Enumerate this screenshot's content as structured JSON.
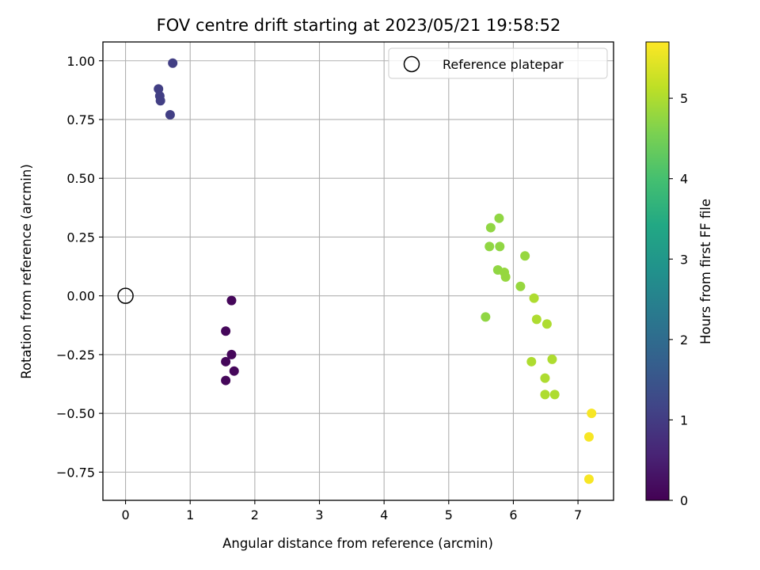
{
  "chart_data": {
    "type": "scatter",
    "title": "FOV centre drift starting at 2023/05/21 19:58:52",
    "xlabel": "Angular distance from reference (arcmin)",
    "ylabel": "Rotation from reference (arcmin)",
    "xlim": [
      -0.35,
      7.55
    ],
    "ylim": [
      -0.87,
      1.08
    ],
    "xticks": [
      "0",
      "1",
      "2",
      "3",
      "4",
      "5",
      "6",
      "7"
    ],
    "xtick_values": [
      0,
      1,
      2,
      3,
      4,
      5,
      6,
      7
    ],
    "yticks": [
      "1.00",
      "0.75",
      "0.50",
      "0.25",
      "0.00",
      "−0.25",
      "−0.50",
      "−0.75"
    ],
    "ytick_values": [
      1.0,
      0.75,
      0.5,
      0.25,
      0.0,
      -0.25,
      -0.5,
      -0.75
    ],
    "grid": true,
    "legend": {
      "label": "Reference platepar",
      "placement": "top-right"
    },
    "reference_point": {
      "x": 0.0,
      "y": 0.0
    },
    "colorbar": {
      "label": "Hours from first FF file",
      "colormap": "viridis",
      "range": [
        0,
        5.7
      ],
      "ticks": [
        "0",
        "1",
        "2",
        "3",
        "4",
        "5"
      ],
      "tick_values": [
        0,
        1,
        2,
        3,
        4,
        5
      ]
    },
    "points": [
      {
        "x": 1.64,
        "y": -0.02,
        "hours": 0.1
      },
      {
        "x": 1.55,
        "y": -0.15,
        "hours": 0.1
      },
      {
        "x": 1.64,
        "y": -0.25,
        "hours": 0.1
      },
      {
        "x": 1.55,
        "y": -0.28,
        "hours": 0.1
      },
      {
        "x": 1.68,
        "y": -0.32,
        "hours": 0.1
      },
      {
        "x": 1.55,
        "y": -0.36,
        "hours": 0.1
      },
      {
        "x": 0.73,
        "y": 0.99,
        "hours": 1.05
      },
      {
        "x": 0.51,
        "y": 0.88,
        "hours": 1.05
      },
      {
        "x": 0.53,
        "y": 0.85,
        "hours": 1.05
      },
      {
        "x": 0.54,
        "y": 0.83,
        "hours": 1.05
      },
      {
        "x": 0.69,
        "y": 0.77,
        "hours": 1.05
      },
      {
        "x": 5.78,
        "y": 0.33,
        "hours": 4.75
      },
      {
        "x": 5.65,
        "y": 0.29,
        "hours": 4.75
      },
      {
        "x": 5.63,
        "y": 0.21,
        "hours": 4.75
      },
      {
        "x": 5.79,
        "y": 0.21,
        "hours": 4.75
      },
      {
        "x": 6.18,
        "y": 0.17,
        "hours": 4.8
      },
      {
        "x": 5.76,
        "y": 0.11,
        "hours": 4.75
      },
      {
        "x": 5.86,
        "y": 0.1,
        "hours": 4.8
      },
      {
        "x": 5.88,
        "y": 0.08,
        "hours": 4.8
      },
      {
        "x": 6.11,
        "y": 0.04,
        "hours": 4.8
      },
      {
        "x": 5.57,
        "y": -0.09,
        "hours": 4.75
      },
      {
        "x": 6.32,
        "y": -0.01,
        "hours": 5.0
      },
      {
        "x": 6.36,
        "y": -0.1,
        "hours": 5.0
      },
      {
        "x": 6.52,
        "y": -0.12,
        "hours": 5.0
      },
      {
        "x": 6.6,
        "y": -0.27,
        "hours": 5.0
      },
      {
        "x": 6.28,
        "y": -0.28,
        "hours": 5.0
      },
      {
        "x": 6.49,
        "y": -0.35,
        "hours": 5.0
      },
      {
        "x": 6.49,
        "y": -0.42,
        "hours": 5.0
      },
      {
        "x": 6.64,
        "y": -0.42,
        "hours": 5.0
      },
      {
        "x": 7.21,
        "y": -0.5,
        "hours": 5.65
      },
      {
        "x": 7.17,
        "y": -0.6,
        "hours": 5.65
      },
      {
        "x": 7.17,
        "y": -0.78,
        "hours": 5.65
      }
    ]
  }
}
